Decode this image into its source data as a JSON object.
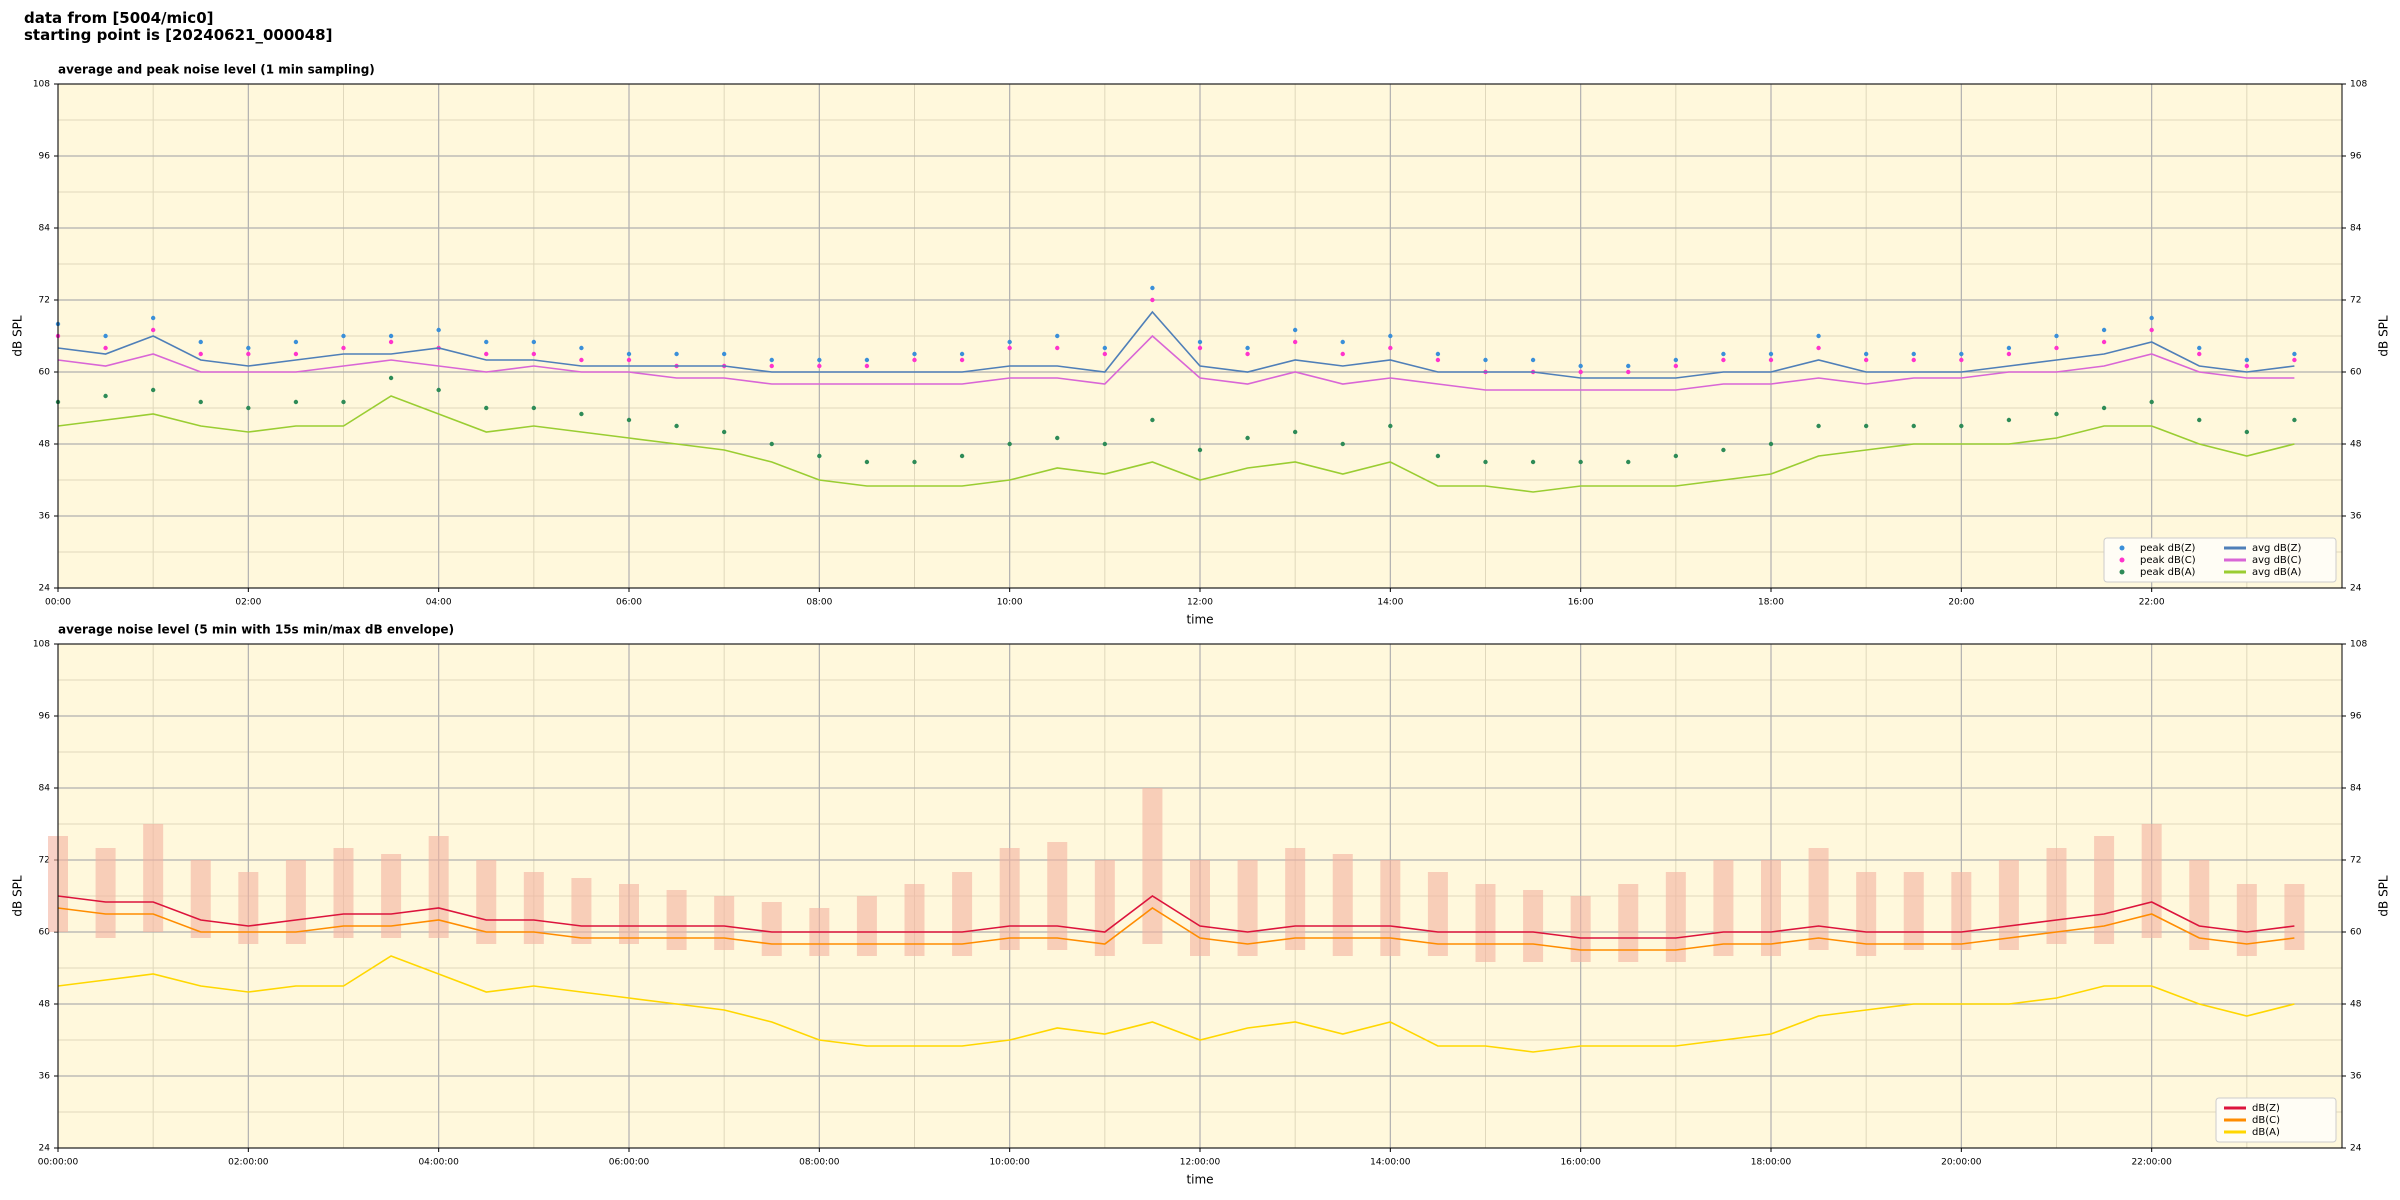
{
  "header": {
    "lines": [
      "data from [5004/mic0]",
      "starting point is [20240621_000048]"
    ]
  },
  "chart_data": [
    {
      "type": "line",
      "title": "average and peak noise level (1 min sampling)",
      "xlabel": "time",
      "ylabel": "dB SPL",
      "background": "#fff8dc",
      "grid": true,
      "legend": "lower right",
      "legend_columns": 2,
      "xlim": [
        0,
        24
      ],
      "ylim": [
        24,
        108
      ],
      "xticks": [
        {
          "value": 0,
          "label": "00:00"
        },
        {
          "value": 2,
          "label": "02:00"
        },
        {
          "value": 4,
          "label": "04:00"
        },
        {
          "value": 6,
          "label": "06:00"
        },
        {
          "value": 8,
          "label": "08:00"
        },
        {
          "value": 10,
          "label": "10:00"
        },
        {
          "value": 12,
          "label": "12:00"
        },
        {
          "value": 14,
          "label": "14:00"
        },
        {
          "value": 16,
          "label": "16:00"
        },
        {
          "value": 18,
          "label": "18:00"
        },
        {
          "value": 20,
          "label": "20:00"
        },
        {
          "value": 22,
          "label": "22:00"
        }
      ],
      "yticks": [
        24,
        36,
        48,
        60,
        72,
        84,
        96,
        108
      ],
      "xminor": [
        1,
        3,
        5,
        7,
        9,
        11,
        13,
        15,
        17,
        19,
        21,
        23
      ],
      "yminor": [
        30,
        42,
        54,
        66,
        78,
        90,
        102
      ],
      "x": [
        0,
        0.5,
        1,
        1.5,
        2,
        2.5,
        3,
        3.5,
        4,
        4.5,
        5,
        5.5,
        6,
        6.5,
        7,
        7.5,
        8,
        8.5,
        9,
        9.5,
        10,
        10.5,
        11,
        11.5,
        12,
        12.5,
        13,
        13.5,
        14,
        14.5,
        15,
        15.5,
        16,
        16.5,
        17,
        17.5,
        18,
        18.5,
        19,
        19.5,
        20,
        20.5,
        21,
        21.5,
        22,
        22.5,
        23,
        23.5
      ],
      "series": [
        {
          "name": "peak dB(Z)",
          "style": "points",
          "color": "#3a8fd9",
          "values": [
            68,
            66,
            69,
            65,
            64,
            65,
            66,
            66,
            67,
            65,
            65,
            64,
            63,
            63,
            63,
            62,
            62,
            62,
            63,
            63,
            65,
            66,
            64,
            74,
            65,
            64,
            67,
            65,
            66,
            63,
            62,
            62,
            61,
            61,
            62,
            63,
            63,
            66,
            63,
            63,
            63,
            64,
            66,
            67,
            69,
            64,
            62,
            63
          ]
        },
        {
          "name": "peak dB(C)",
          "style": "points",
          "color": "#ff33cc",
          "values": [
            66,
            64,
            67,
            63,
            63,
            63,
            64,
            65,
            64,
            63,
            63,
            62,
            62,
            61,
            61,
            61,
            61,
            61,
            62,
            62,
            64,
            64,
            63,
            72,
            64,
            63,
            65,
            63,
            64,
            62,
            60,
            60,
            60,
            60,
            61,
            62,
            62,
            64,
            62,
            62,
            62,
            63,
            64,
            65,
            67,
            63,
            61,
            62
          ]
        },
        {
          "name": "peak dB(A)",
          "style": "points",
          "color": "#2e8b57",
          "values": [
            55,
            56,
            57,
            55,
            54,
            55,
            55,
            59,
            57,
            54,
            54,
            53,
            52,
            51,
            50,
            48,
            46,
            45,
            45,
            46,
            48,
            49,
            48,
            52,
            47,
            49,
            50,
            48,
            51,
            46,
            45,
            45,
            45,
            45,
            46,
            47,
            48,
            51,
            51,
            51,
            51,
            52,
            53,
            54,
            55,
            52,
            50,
            52
          ]
        },
        {
          "name": "avg dB(Z)",
          "style": "line",
          "color": "#4f7fb8",
          "values": [
            64,
            63,
            66,
            62,
            61,
            62,
            63,
            63,
            64,
            62,
            62,
            61,
            61,
            61,
            61,
            60,
            60,
            60,
            60,
            60,
            61,
            61,
            60,
            70,
            61,
            60,
            62,
            61,
            62,
            60,
            60,
            60,
            59,
            59,
            59,
            60,
            60,
            62,
            60,
            60,
            60,
            61,
            62,
            63,
            65,
            61,
            60,
            61
          ]
        },
        {
          "name": "avg dB(C)",
          "style": "line",
          "color": "#d966d6",
          "values": [
            62,
            61,
            63,
            60,
            60,
            60,
            61,
            62,
            61,
            60,
            61,
            60,
            60,
            59,
            59,
            58,
            58,
            58,
            58,
            58,
            59,
            59,
            58,
            66,
            59,
            58,
            60,
            58,
            59,
            58,
            57,
            57,
            57,
            57,
            57,
            58,
            58,
            59,
            58,
            59,
            59,
            60,
            60,
            61,
            63,
            60,
            59,
            59
          ]
        },
        {
          "name": "avg dB(A)",
          "style": "line",
          "color": "#9acd32",
          "values": [
            51,
            52,
            53,
            51,
            50,
            51,
            51,
            56,
            53,
            50,
            51,
            50,
            49,
            48,
            47,
            45,
            42,
            41,
            41,
            41,
            42,
            44,
            43,
            45,
            42,
            44,
            45,
            43,
            45,
            41,
            41,
            40,
            41,
            41,
            41,
            42,
            43,
            46,
            47,
            48,
            48,
            48,
            49,
            51,
            51,
            48,
            46,
            48
          ]
        }
      ]
    },
    {
      "type": "line",
      "title": "average noise level (5 min with 15s min/max dB envelope)",
      "xlabel": "time",
      "ylabel": "dB SPL",
      "background": "#fff8dc",
      "grid": true,
      "legend": "lower right",
      "legend_columns": 1,
      "xlim": [
        0,
        24
      ],
      "ylim": [
        24,
        108
      ],
      "xticks": [
        {
          "value": 0,
          "label": "00:00:00"
        },
        {
          "value": 2,
          "label": "02:00:00"
        },
        {
          "value": 4,
          "label": "04:00:00"
        },
        {
          "value": 6,
          "label": "06:00:00"
        },
        {
          "value": 8,
          "label": "08:00:00"
        },
        {
          "value": 10,
          "label": "10:00:00"
        },
        {
          "value": 12,
          "label": "12:00:00"
        },
        {
          "value": 14,
          "label": "14:00:00"
        },
        {
          "value": 16,
          "label": "16:00:00"
        },
        {
          "value": 18,
          "label": "18:00:00"
        },
        {
          "value": 20,
          "label": "20:00:00"
        },
        {
          "value": 22,
          "label": "22:00:00"
        }
      ],
      "yticks": [
        24,
        36,
        48,
        60,
        72,
        84,
        96,
        108
      ],
      "xminor": [
        1,
        3,
        5,
        7,
        9,
        11,
        13,
        15,
        17,
        19,
        21,
        23
      ],
      "yminor": [
        30,
        42,
        54,
        66,
        78,
        90,
        102
      ],
      "x": [
        0,
        0.5,
        1,
        1.5,
        2,
        2.5,
        3,
        3.5,
        4,
        4.5,
        5,
        5.5,
        6,
        6.5,
        7,
        7.5,
        8,
        8.5,
        9,
        9.5,
        10,
        10.5,
        11,
        11.5,
        12,
        12.5,
        13,
        13.5,
        14,
        14.5,
        15,
        15.5,
        16,
        16.5,
        17,
        17.5,
        18,
        18.5,
        19,
        19.5,
        20,
        20.5,
        21,
        21.5,
        22,
        22.5,
        23,
        23.5
      ],
      "envelope": {
        "color": "#f4b3a0",
        "min": [
          60,
          59,
          60,
          59,
          58,
          58,
          59,
          59,
          59,
          58,
          58,
          58,
          58,
          57,
          57,
          56,
          56,
          56,
          56,
          56,
          57,
          57,
          56,
          58,
          56,
          56,
          57,
          56,
          56,
          56,
          55,
          55,
          55,
          55,
          55,
          56,
          56,
          57,
          56,
          57,
          57,
          57,
          58,
          58,
          59,
          57,
          56,
          57
        ],
        "max": [
          76,
          74,
          78,
          72,
          70,
          72,
          74,
          73,
          76,
          72,
          70,
          69,
          68,
          67,
          66,
          65,
          64,
          66,
          68,
          70,
          74,
          75,
          72,
          84,
          72,
          72,
          74,
          73,
          72,
          70,
          68,
          67,
          66,
          68,
          70,
          72,
          72,
          74,
          70,
          70,
          70,
          72,
          74,
          76,
          78,
          72,
          68,
          68
        ]
      },
      "series": [
        {
          "name": "dB(Z)",
          "style": "line",
          "color": "#dc143c",
          "values": [
            66,
            65,
            65,
            62,
            61,
            62,
            63,
            63,
            64,
            62,
            62,
            61,
            61,
            61,
            61,
            60,
            60,
            60,
            60,
            60,
            61,
            61,
            60,
            66,
            61,
            60,
            61,
            61,
            61,
            60,
            60,
            60,
            59,
            59,
            59,
            60,
            60,
            61,
            60,
            60,
            60,
            61,
            62,
            63,
            65,
            61,
            60,
            61
          ]
        },
        {
          "name": "dB(C)",
          "style": "line",
          "color": "#ff8c00",
          "values": [
            64,
            63,
            63,
            60,
            60,
            60,
            61,
            61,
            62,
            60,
            60,
            59,
            59,
            59,
            59,
            58,
            58,
            58,
            58,
            58,
            59,
            59,
            58,
            64,
            59,
            58,
            59,
            59,
            59,
            58,
            58,
            58,
            57,
            57,
            57,
            58,
            58,
            59,
            58,
            58,
            58,
            59,
            60,
            61,
            63,
            59,
            58,
            59
          ]
        },
        {
          "name": "dB(A)",
          "style": "line",
          "color": "#ffd700",
          "values": [
            51,
            52,
            53,
            51,
            50,
            51,
            51,
            56,
            53,
            50,
            51,
            50,
            49,
            48,
            47,
            45,
            42,
            41,
            41,
            41,
            42,
            44,
            43,
            45,
            42,
            44,
            45,
            43,
            45,
            41,
            41,
            40,
            41,
            41,
            41,
            42,
            43,
            46,
            47,
            48,
            48,
            48,
            49,
            51,
            51,
            48,
            46,
            48
          ]
        }
      ]
    }
  ]
}
